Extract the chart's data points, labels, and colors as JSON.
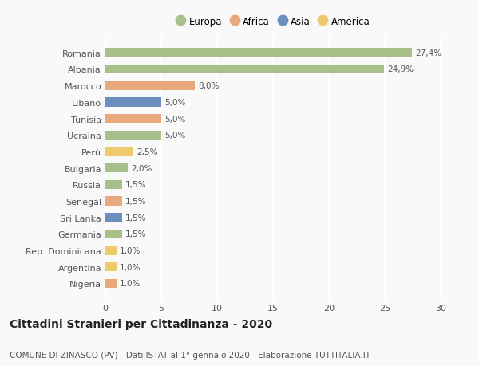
{
  "categories": [
    "Nigeria",
    "Argentina",
    "Rep. Dominicana",
    "Germania",
    "Sri Lanka",
    "Senegal",
    "Russia",
    "Bulgaria",
    "Perù",
    "Ucraina",
    "Tunisia",
    "Libano",
    "Marocco",
    "Albania",
    "Romania"
  ],
  "values": [
    1.0,
    1.0,
    1.0,
    1.5,
    1.5,
    1.5,
    1.5,
    2.0,
    2.5,
    5.0,
    5.0,
    5.0,
    8.0,
    24.9,
    27.4
  ],
  "colors": [
    "#E8A97E",
    "#F0C96E",
    "#F0C96E",
    "#A8C08A",
    "#6A8FBF",
    "#E8A97E",
    "#A8C08A",
    "#A8C08A",
    "#F0C96E",
    "#A8C08A",
    "#E8A97E",
    "#6A8FBF",
    "#E8A97E",
    "#A8C08A",
    "#A8C08A"
  ],
  "labels": [
    "1,0%",
    "1,0%",
    "1,0%",
    "1,5%",
    "1,5%",
    "1,5%",
    "1,5%",
    "2,0%",
    "2,5%",
    "5,0%",
    "5,0%",
    "5,0%",
    "8,0%",
    "24,9%",
    "27,4%"
  ],
  "legend": {
    "Europa": "#A8C08A",
    "Africa": "#E8A97E",
    "Asia": "#6A8FBF",
    "America": "#F0C96E"
  },
  "xlim": [
    0,
    30
  ],
  "xticks": [
    0,
    5,
    10,
    15,
    20,
    25,
    30
  ],
  "title": "Cittadini Stranieri per Cittadinanza - 2020",
  "subtitle": "COMUNE DI ZINASCO (PV) - Dati ISTAT al 1° gennaio 2020 - Elaborazione TUTTITALIA.IT",
  "background_color": "#f9f9f9",
  "grid_color": "#ffffff",
  "bar_height": 0.55,
  "title_fontsize": 10,
  "subtitle_fontsize": 7.5,
  "label_fontsize": 7.5,
  "tick_fontsize": 8,
  "legend_fontsize": 8.5
}
